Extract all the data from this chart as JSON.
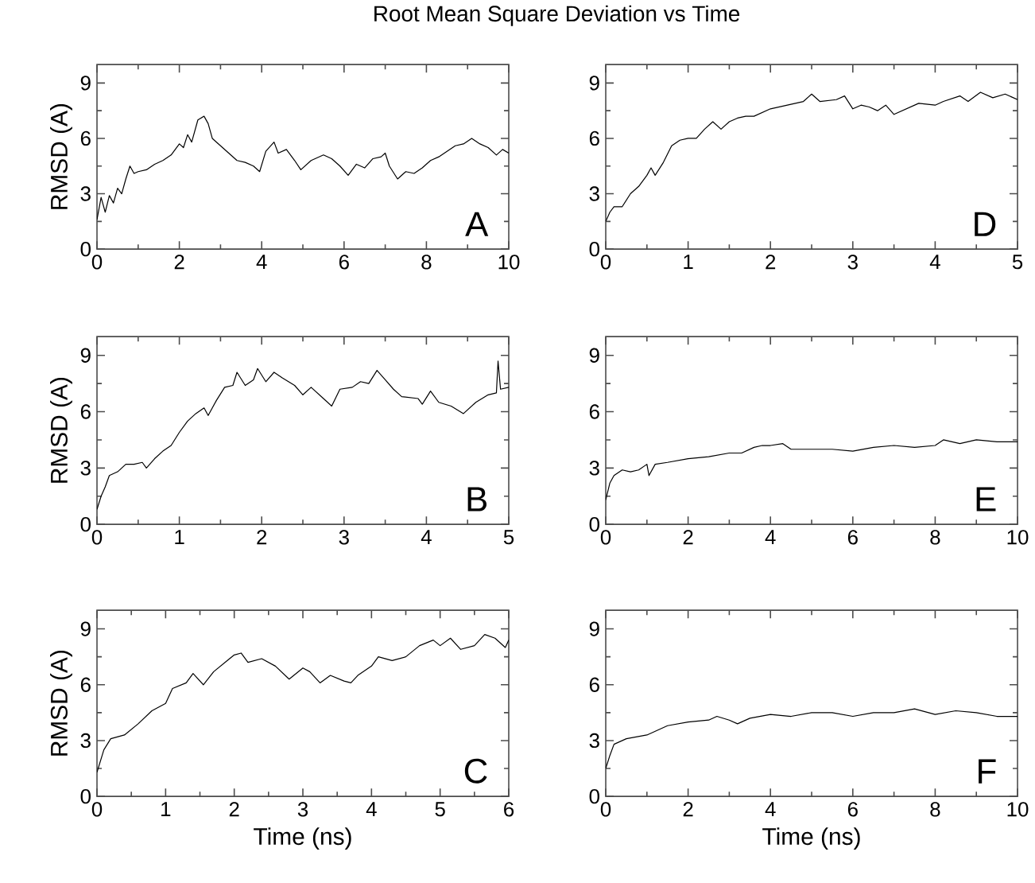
{
  "chart_data": [
    {
      "type": "line",
      "title": "Root Mean Square Deviation vs Time",
      "ylabel": "RMSD (A)",
      "annotations": [
        "A"
      ],
      "color": "#000000",
      "xlim": [
        0,
        10
      ],
      "xticks": [
        0,
        2,
        4,
        6,
        8,
        10
      ],
      "ylim": [
        0,
        10
      ],
      "yticks": [
        0,
        3,
        6,
        9
      ],
      "x": [
        0,
        0.1,
        0.2,
        0.3,
        0.4,
        0.5,
        0.6,
        0.7,
        0.8,
        0.9,
        1.0,
        1.2,
        1.4,
        1.6,
        1.8,
        2.0,
        2.1,
        2.2,
        2.3,
        2.45,
        2.6,
        2.7,
        2.8,
        3.0,
        3.2,
        3.4,
        3.6,
        3.8,
        3.95,
        4.1,
        4.3,
        4.4,
        4.6,
        4.8,
        4.95,
        5.2,
        5.5,
        5.7,
        5.9,
        6.1,
        6.3,
        6.5,
        6.7,
        6.9,
        7.0,
        7.1,
        7.3,
        7.5,
        7.7,
        7.9,
        8.1,
        8.3,
        8.5,
        8.7,
        8.9,
        9.1,
        9.3,
        9.5,
        9.7,
        9.85,
        10
      ],
      "values": [
        1.6,
        2.8,
        2.0,
        2.9,
        2.5,
        3.3,
        3.0,
        3.8,
        4.5,
        4.1,
        4.2,
        4.3,
        4.6,
        4.8,
        5.1,
        5.7,
        5.5,
        6.2,
        5.8,
        7.0,
        7.2,
        6.8,
        6.0,
        5.6,
        5.2,
        4.8,
        4.7,
        4.5,
        4.2,
        5.3,
        5.8,
        5.2,
        5.4,
        4.8,
        4.3,
        4.8,
        5.1,
        4.9,
        4.5,
        4.0,
        4.6,
        4.4,
        4.9,
        5.0,
        5.2,
        4.5,
        3.8,
        4.2,
        4.1,
        4.4,
        4.8,
        5.0,
        5.3,
        5.6,
        5.7,
        6.0,
        5.7,
        5.5,
        5.1,
        5.4,
        5.2
      ]
    },
    {
      "type": "line",
      "annotations": [
        "D"
      ],
      "color": "#000000",
      "xlim": [
        0,
        5
      ],
      "xticks": [
        0,
        1,
        2,
        3,
        4,
        5
      ],
      "ylim": [
        0,
        10
      ],
      "yticks": [
        0,
        3,
        6,
        9
      ],
      "x": [
        0,
        0.05,
        0.1,
        0.2,
        0.3,
        0.4,
        0.5,
        0.55,
        0.6,
        0.7,
        0.8,
        0.9,
        1.0,
        1.1,
        1.2,
        1.3,
        1.4,
        1.5,
        1.6,
        1.7,
        1.8,
        1.9,
        2.0,
        2.2,
        2.4,
        2.5,
        2.6,
        2.8,
        2.9,
        3.0,
        3.1,
        3.2,
        3.3,
        3.4,
        3.5,
        3.6,
        3.8,
        4.0,
        4.1,
        4.3,
        4.4,
        4.55,
        4.7,
        4.85,
        5.0
      ],
      "values": [
        1.5,
        2.0,
        2.3,
        2.3,
        3.0,
        3.4,
        4.0,
        4.4,
        4.0,
        4.7,
        5.6,
        5.9,
        6.0,
        6.0,
        6.5,
        6.9,
        6.5,
        6.9,
        7.1,
        7.2,
        7.2,
        7.4,
        7.6,
        7.8,
        8.0,
        8.4,
        8.0,
        8.1,
        8.3,
        7.6,
        7.8,
        7.7,
        7.5,
        7.8,
        7.3,
        7.5,
        7.9,
        7.8,
        8.0,
        8.3,
        8.0,
        8.5,
        8.2,
        8.4,
        8.1
      ]
    },
    {
      "type": "line",
      "ylabel": "RMSD (A)",
      "annotations": [
        "B"
      ],
      "color": "#000000",
      "xlim": [
        0,
        5
      ],
      "xticks": [
        0,
        1,
        2,
        3,
        4,
        5
      ],
      "ylim": [
        0,
        10
      ],
      "yticks": [
        0,
        3,
        6,
        9
      ],
      "x": [
        0,
        0.05,
        0.1,
        0.15,
        0.25,
        0.35,
        0.45,
        0.55,
        0.6,
        0.7,
        0.8,
        0.9,
        1.0,
        1.1,
        1.2,
        1.3,
        1.35,
        1.45,
        1.55,
        1.65,
        1.7,
        1.8,
        1.9,
        1.95,
        2.05,
        2.15,
        2.25,
        2.4,
        2.5,
        2.6,
        2.75,
        2.85,
        2.95,
        3.1,
        3.2,
        3.3,
        3.4,
        3.5,
        3.6,
        3.7,
        3.9,
        3.95,
        4.05,
        4.15,
        4.3,
        4.45,
        4.6,
        4.75,
        4.85,
        4.87,
        4.9,
        5.0
      ],
      "values": [
        0.8,
        1.5,
        2.0,
        2.6,
        2.8,
        3.2,
        3.2,
        3.3,
        3.0,
        3.5,
        3.9,
        4.2,
        4.9,
        5.5,
        5.9,
        6.2,
        5.8,
        6.6,
        7.3,
        7.4,
        8.1,
        7.4,
        7.7,
        8.3,
        7.6,
        8.1,
        7.8,
        7.4,
        6.9,
        7.3,
        6.7,
        6.3,
        7.2,
        7.3,
        7.6,
        7.5,
        8.2,
        7.7,
        7.2,
        6.8,
        6.7,
        6.4,
        7.1,
        6.5,
        6.3,
        5.9,
        6.5,
        6.9,
        7.0,
        8.7,
        7.2,
        7.3
      ]
    },
    {
      "type": "line",
      "annotations": [
        "E"
      ],
      "color": "#000000",
      "xlim": [
        0,
        10
      ],
      "xticks": [
        0,
        2,
        4,
        6,
        8,
        10
      ],
      "ylim": [
        0,
        10
      ],
      "yticks": [
        0,
        3,
        6,
        9
      ],
      "x": [
        0,
        0.1,
        0.2,
        0.4,
        0.6,
        0.8,
        1.0,
        1.05,
        1.2,
        1.5,
        2.0,
        2.5,
        3.0,
        3.3,
        3.6,
        3.8,
        4.0,
        4.3,
        4.5,
        5.0,
        5.5,
        6.0,
        6.5,
        7.0,
        7.5,
        8.0,
        8.2,
        8.6,
        9.0,
        9.5,
        10.0
      ],
      "values": [
        1.3,
        2.2,
        2.6,
        2.9,
        2.8,
        2.9,
        3.2,
        2.6,
        3.2,
        3.3,
        3.5,
        3.6,
        3.8,
        3.8,
        4.1,
        4.2,
        4.2,
        4.3,
        4.0,
        4.0,
        4.0,
        3.9,
        4.1,
        4.2,
        4.1,
        4.2,
        4.5,
        4.3,
        4.5,
        4.4,
        4.4
      ]
    },
    {
      "type": "line",
      "xlabel": "Time (ns)",
      "ylabel": "RMSD (A)",
      "annotations": [
        "C"
      ],
      "color": "#000000",
      "xlim": [
        0,
        6
      ],
      "xticks": [
        0,
        1,
        2,
        3,
        4,
        5,
        6
      ],
      "ylim": [
        0,
        10
      ],
      "yticks": [
        0,
        3,
        6,
        9
      ],
      "x": [
        0,
        0.1,
        0.2,
        0.4,
        0.6,
        0.8,
        1.0,
        1.1,
        1.3,
        1.4,
        1.55,
        1.7,
        1.9,
        2.0,
        2.1,
        2.2,
        2.4,
        2.6,
        2.8,
        3.0,
        3.1,
        3.25,
        3.4,
        3.6,
        3.7,
        3.8,
        4.0,
        4.1,
        4.3,
        4.5,
        4.7,
        4.9,
        5.0,
        5.15,
        5.3,
        5.5,
        5.65,
        5.8,
        5.95,
        6.0
      ],
      "values": [
        1.3,
        2.5,
        3.1,
        3.3,
        3.9,
        4.6,
        5.0,
        5.8,
        6.1,
        6.6,
        6.0,
        6.7,
        7.3,
        7.6,
        7.7,
        7.2,
        7.4,
        7.0,
        6.3,
        6.9,
        6.7,
        6.1,
        6.5,
        6.2,
        6.1,
        6.5,
        7.0,
        7.5,
        7.3,
        7.5,
        8.1,
        8.4,
        8.1,
        8.5,
        7.9,
        8.1,
        8.7,
        8.5,
        8.0,
        8.4
      ]
    },
    {
      "type": "line",
      "xlabel": "Time (ns)",
      "annotations": [
        "F"
      ],
      "color": "#000000",
      "xlim": [
        0,
        10
      ],
      "xticks": [
        0,
        2,
        4,
        6,
        8,
        10
      ],
      "ylim": [
        0,
        10
      ],
      "yticks": [
        0,
        3,
        6,
        9
      ],
      "x": [
        0,
        0.1,
        0.2,
        0.5,
        1.0,
        1.5,
        2.0,
        2.5,
        2.7,
        3.0,
        3.2,
        3.5,
        4.0,
        4.5,
        5.0,
        5.5,
        6.0,
        6.5,
        7.0,
        7.5,
        8.0,
        8.5,
        9.0,
        9.5,
        10.0
      ],
      "values": [
        1.5,
        2.2,
        2.8,
        3.1,
        3.3,
        3.8,
        4.0,
        4.1,
        4.3,
        4.1,
        3.9,
        4.2,
        4.4,
        4.3,
        4.5,
        4.5,
        4.3,
        4.5,
        4.5,
        4.7,
        4.4,
        4.6,
        4.5,
        4.3,
        4.3
      ]
    }
  ]
}
